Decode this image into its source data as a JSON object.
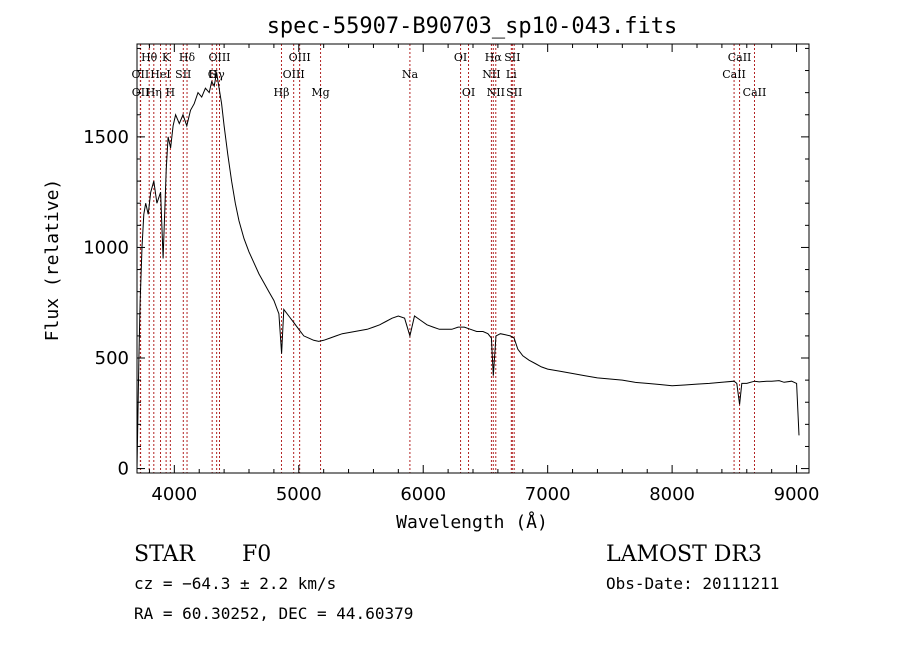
{
  "chart_data": {
    "type": "line",
    "title": "spec-55907-B90703_sp10-043.fits",
    "xlabel": "Wavelength (Å)",
    "ylabel": "Flux (relative)",
    "xlim": [
      3700,
      9100
    ],
    "ylim": [
      -20,
      1920
    ],
    "x_ticks": [
      4000,
      5000,
      6000,
      7000,
      8000,
      9000
    ],
    "y_ticks": [
      0,
      500,
      1000,
      1500
    ],
    "grid": false,
    "line_color": "#000000",
    "marker_color": "#b22222",
    "series": [
      {
        "values_x": [
          3700,
          3715,
          3725,
          3740,
          3755,
          3770,
          3790,
          3810,
          3835,
          3860,
          3890,
          3910,
          3935,
          3950,
          3970,
          3990,
          4010,
          4040,
          4070,
          4100,
          4130,
          4160,
          4190,
          4220,
          4250,
          4280,
          4300,
          4320,
          4340,
          4360,
          4380,
          4400,
          4430,
          4460,
          4490,
          4520,
          4560,
          4600,
          4640,
          4680,
          4720,
          4760,
          4800,
          4840,
          4862,
          4880,
          4920,
          4960,
          5000,
          5040,
          5080,
          5120,
          5160,
          5200,
          5250,
          5300,
          5350,
          5400,
          5450,
          5500,
          5550,
          5600,
          5650,
          5700,
          5750,
          5800,
          5850,
          5893,
          5930,
          5980,
          6030,
          6080,
          6130,
          6180,
          6230,
          6280,
          6330,
          6380,
          6430,
          6480,
          6520,
          6548,
          6563,
          6585,
          6620,
          6660,
          6700,
          6730,
          6760,
          6800,
          6850,
          6900,
          6950,
          7000,
          7100,
          7200,
          7300,
          7400,
          7500,
          7600,
          7700,
          7800,
          7900,
          8000,
          8100,
          8200,
          8300,
          8400,
          8498,
          8520,
          8542,
          8560,
          8600,
          8662,
          8700,
          8760,
          8800,
          8860,
          8900,
          8960,
          9000,
          9020
        ],
        "values_y": [
          0,
          500,
          750,
          1000,
          1150,
          1200,
          1150,
          1250,
          1300,
          1200,
          1250,
          950,
          1350,
          1500,
          1450,
          1550,
          1600,
          1560,
          1600,
          1550,
          1620,
          1650,
          1700,
          1680,
          1720,
          1700,
          1750,
          1730,
          1790,
          1720,
          1650,
          1550,
          1420,
          1300,
          1200,
          1120,
          1040,
          980,
          930,
          880,
          840,
          800,
          760,
          700,
          520,
          720,
          690,
          660,
          630,
          600,
          590,
          580,
          575,
          580,
          590,
          600,
          610,
          615,
          620,
          625,
          630,
          640,
          650,
          665,
          680,
          690,
          680,
          600,
          690,
          670,
          650,
          640,
          630,
          630,
          630,
          640,
          640,
          630,
          620,
          620,
          610,
          590,
          420,
          600,
          610,
          605,
          600,
          590,
          540,
          510,
          490,
          475,
          460,
          450,
          440,
          430,
          420,
          410,
          405,
          400,
          390,
          385,
          380,
          375,
          378,
          382,
          385,
          390,
          395,
          385,
          290,
          385,
          385,
          395,
          392,
          395,
          395,
          398,
          390,
          395,
          385,
          150
        ]
      }
    ],
    "line_markers": [
      {
        "label": "Hθ",
        "wl": 3798,
        "row": 1
      },
      {
        "label": "OII",
        "wl": 3727,
        "row": 2
      },
      {
        "label": "OII",
        "wl": 3729,
        "row": 3
      },
      {
        "label": "K",
        "wl": 3934,
        "row": 1
      },
      {
        "label": "HeI",
        "wl": 3889,
        "row": 2
      },
      {
        "label": "Hη",
        "wl": 3835,
        "row": 3
      },
      {
        "label": "Hδ",
        "wl": 4102,
        "row": 1
      },
      {
        "label": "SII",
        "wl": 4072,
        "row": 2
      },
      {
        "label": "H",
        "wl": 3968,
        "row": 3
      },
      {
        "label": "OIII",
        "wl": 4363,
        "row": 1
      },
      {
        "label": "Hγ",
        "wl": 4340,
        "row": 2
      },
      {
        "label": "G",
        "wl": 4304,
        "row": 2
      },
      {
        "label": "OIII",
        "wl": 5007,
        "row": 1
      },
      {
        "label": "OIII",
        "wl": 4959,
        "row": 2
      },
      {
        "label": "Hβ",
        "wl": 4861,
        "row": 3
      },
      {
        "label": "Mg",
        "wl": 5175,
        "row": 3
      },
      {
        "label": "Na",
        "wl": 5893,
        "row": 2
      },
      {
        "label": "OI",
        "wl": 6300,
        "row": 1
      },
      {
        "label": "OI",
        "wl": 6364,
        "row": 3
      },
      {
        "label": "Hα",
        "wl": 6563,
        "row": 1
      },
      {
        "label": "SII",
        "wl": 6716,
        "row": 1
      },
      {
        "label": "NII",
        "wl": 6548,
        "row": 2
      },
      {
        "label": "Li",
        "wl": 6708,
        "row": 2
      },
      {
        "label": "NII",
        "wl": 6583,
        "row": 3
      },
      {
        "label": "SII",
        "wl": 6731,
        "row": 3
      },
      {
        "label": "CaII",
        "wl": 8542,
        "row": 1
      },
      {
        "label": "CaII",
        "wl": 8498,
        "row": 2
      },
      {
        "label": "CaII",
        "wl": 8662,
        "row": 3
      }
    ]
  },
  "info": {
    "object_type": "STAR",
    "subclass": "F0",
    "survey": "LAMOST DR3",
    "cz": "cz = −64.3 ± 2.2 km/s",
    "obs_date": "Obs-Date: 20111211",
    "radec": "RA =  60.30252, DEC =  44.60379"
  }
}
